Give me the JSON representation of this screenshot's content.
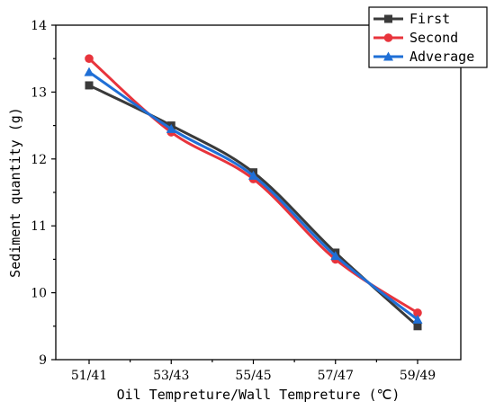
{
  "chart_data": {
    "type": "line",
    "categories": [
      "51/41",
      "53/43",
      "55/45",
      "57/47",
      "59/49"
    ],
    "series": [
      {
        "name": "First",
        "values": [
          13.1,
          12.5,
          11.8,
          10.6,
          9.5
        ],
        "color": "#3a3a3a",
        "marker": "square"
      },
      {
        "name": "Second",
        "values": [
          13.5,
          12.4,
          11.7,
          10.5,
          9.7
        ],
        "color": "#e8343c",
        "marker": "circle"
      },
      {
        "name": "Adverage",
        "values": [
          13.3,
          12.45,
          11.75,
          10.55,
          9.6
        ],
        "color": "#1f6fd6",
        "marker": "triangle"
      }
    ],
    "xlabel": "Oil Tempreture/Wall Tempreture (℃)",
    "ylabel": "Sediment quantity (g)",
    "ylim": [
      9,
      14
    ],
    "yticks": [
      9,
      10,
      11,
      12,
      13,
      14
    ],
    "grid": false,
    "legend_position": "top-right"
  }
}
